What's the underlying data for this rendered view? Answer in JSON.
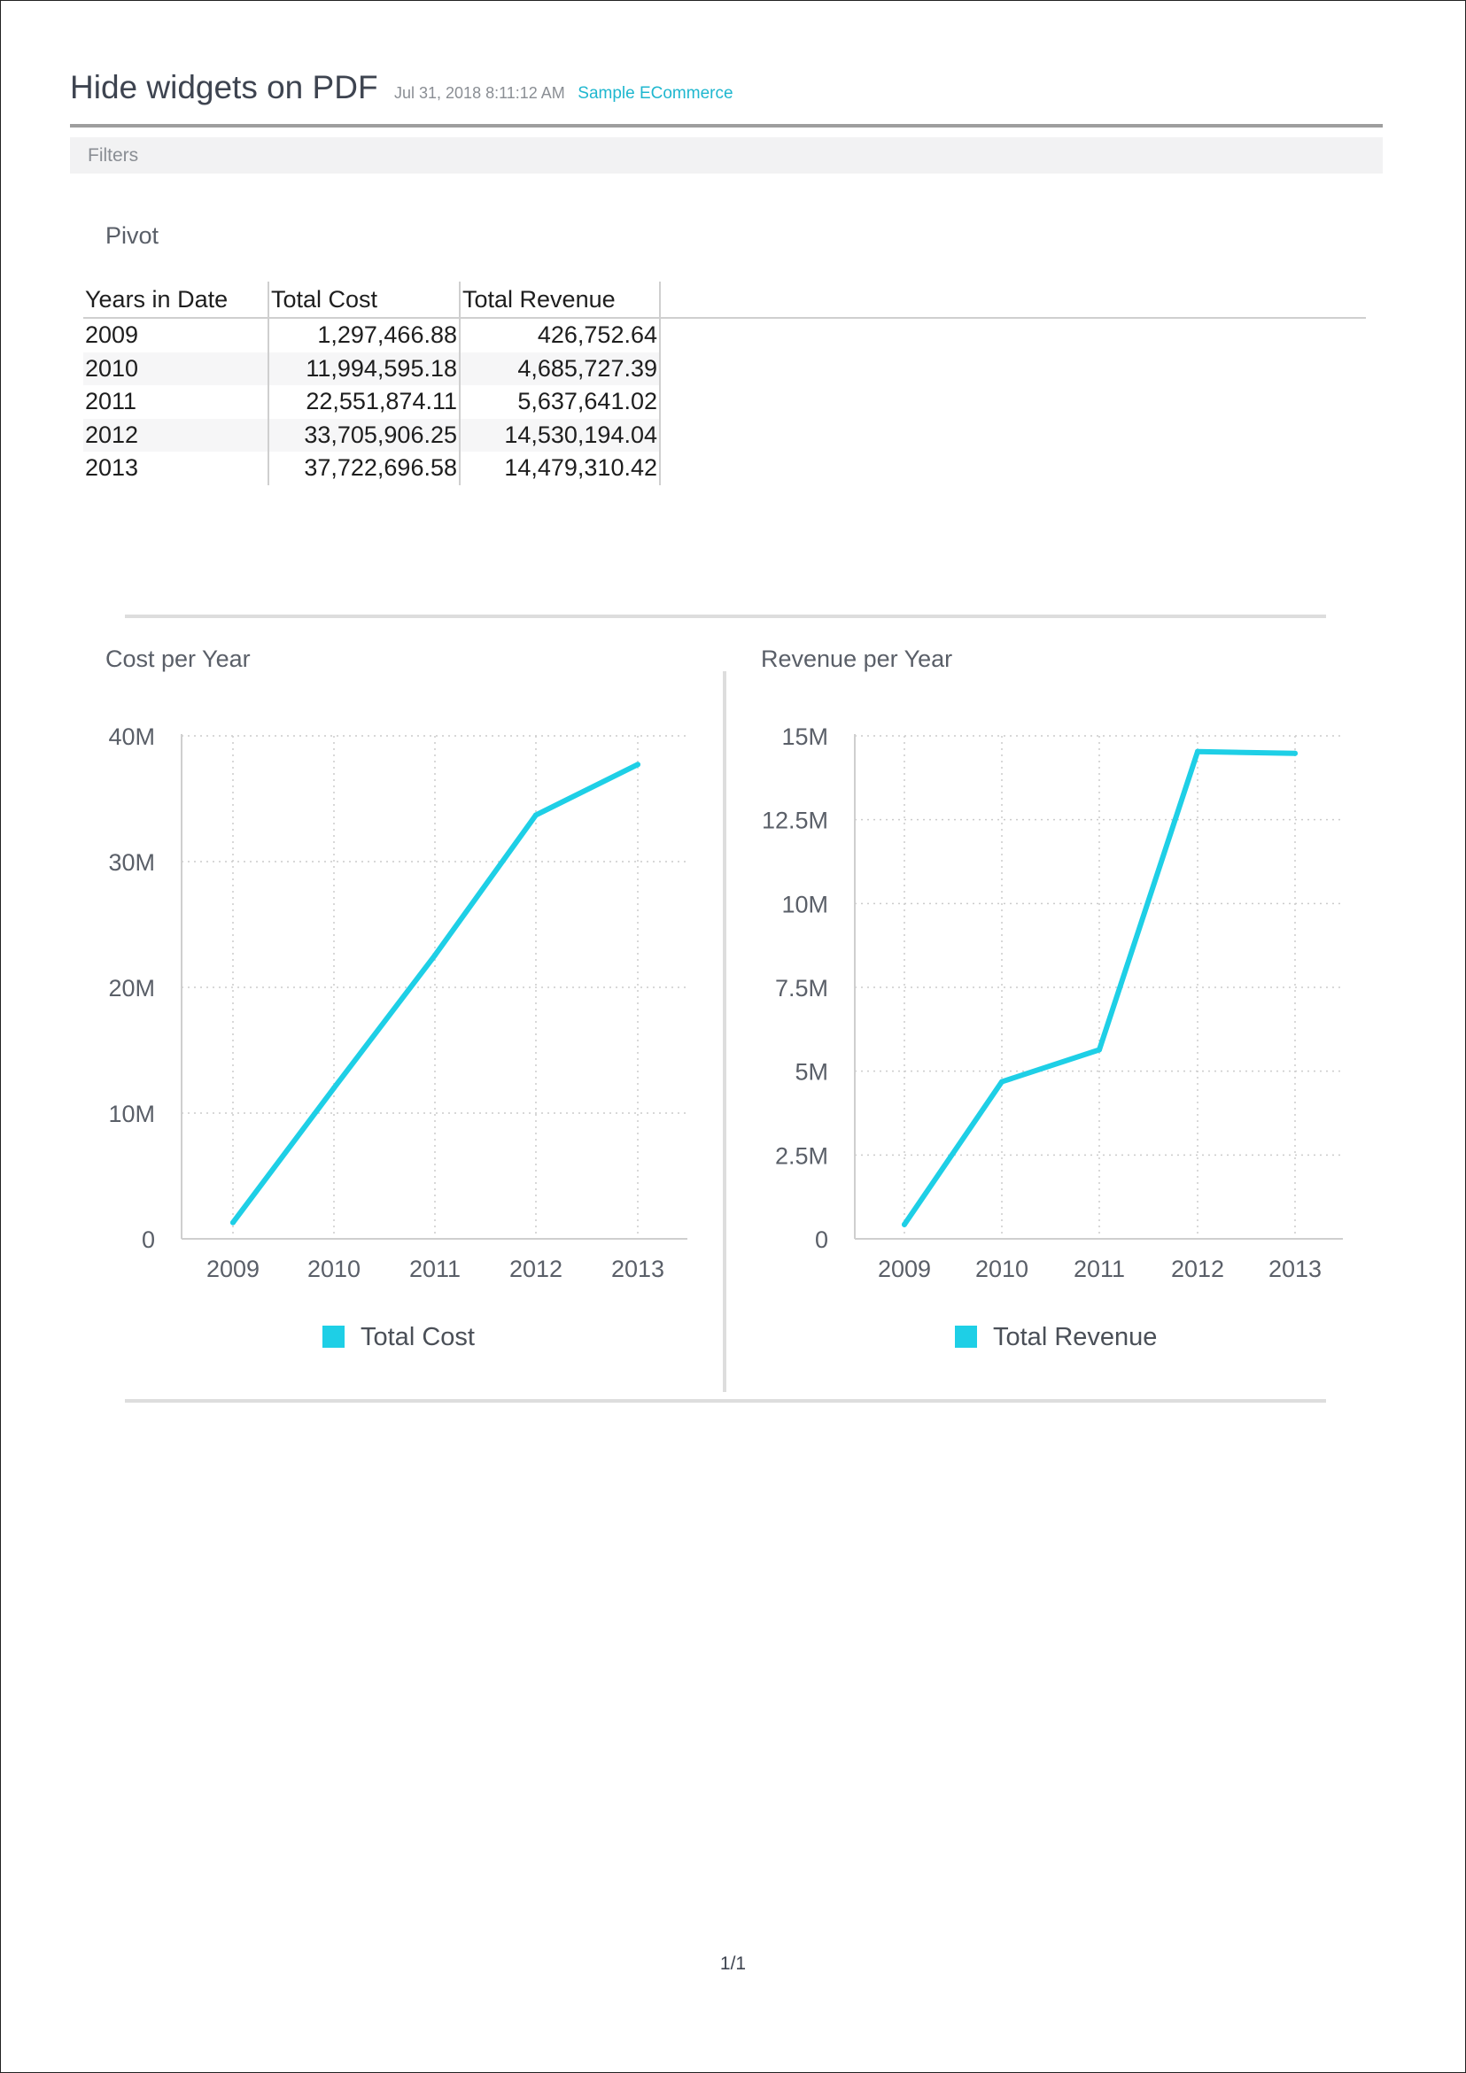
{
  "header": {
    "title": "Hide widgets on PDF",
    "timestamp": "Jul 31, 2018 8:11:12 AM",
    "datasource": "Sample ECommerce"
  },
  "filters": {
    "label": "Filters"
  },
  "pivot": {
    "title": "Pivot",
    "columns": [
      "Years in Date",
      "Total Cost",
      "Total Revenue"
    ],
    "rows": [
      [
        "2009",
        "1,297,466.88",
        "426,752.64"
      ],
      [
        "2010",
        "11,994,595.18",
        "4,685,727.39"
      ],
      [
        "2011",
        "22,551,874.11",
        "5,637,641.02"
      ],
      [
        "2012",
        "33,705,906.25",
        "14,530,194.04"
      ],
      [
        "2013",
        "37,722,696.58",
        "14,479,310.42"
      ]
    ]
  },
  "chart_data": [
    {
      "type": "line",
      "title": "Cost per Year",
      "x": [
        "2009",
        "2010",
        "2011",
        "2012",
        "2013"
      ],
      "series": [
        {
          "name": "Total Cost",
          "values": [
            1297466.88,
            11994595.18,
            22551874.11,
            33705906.25,
            37722696.58
          ]
        }
      ],
      "ylim": [
        0,
        40000000
      ],
      "yticks": [
        0,
        10000000,
        20000000,
        30000000,
        40000000
      ],
      "ytick_labels": [
        "0",
        "10M",
        "20M",
        "30M",
        "40M"
      ],
      "grid": true,
      "legend_position": "bottom",
      "color": "#1ecfe6"
    },
    {
      "type": "line",
      "title": "Revenue per Year",
      "x": [
        "2009",
        "2010",
        "2011",
        "2012",
        "2013"
      ],
      "series": [
        {
          "name": "Total Revenue",
          "values": [
            426752.64,
            4685727.39,
            5637641.02,
            14530194.04,
            14479310.42
          ]
        }
      ],
      "ylim": [
        0,
        15000000
      ],
      "yticks": [
        0,
        2500000,
        5000000,
        7500000,
        10000000,
        12500000,
        15000000
      ],
      "ytick_labels": [
        "0",
        "2.5M",
        "5M",
        "7.5M",
        "10M",
        "12.5M",
        "15M"
      ],
      "grid": true,
      "legend_position": "bottom",
      "color": "#1ecfe6"
    }
  ],
  "footer": {
    "page": "1/1"
  }
}
